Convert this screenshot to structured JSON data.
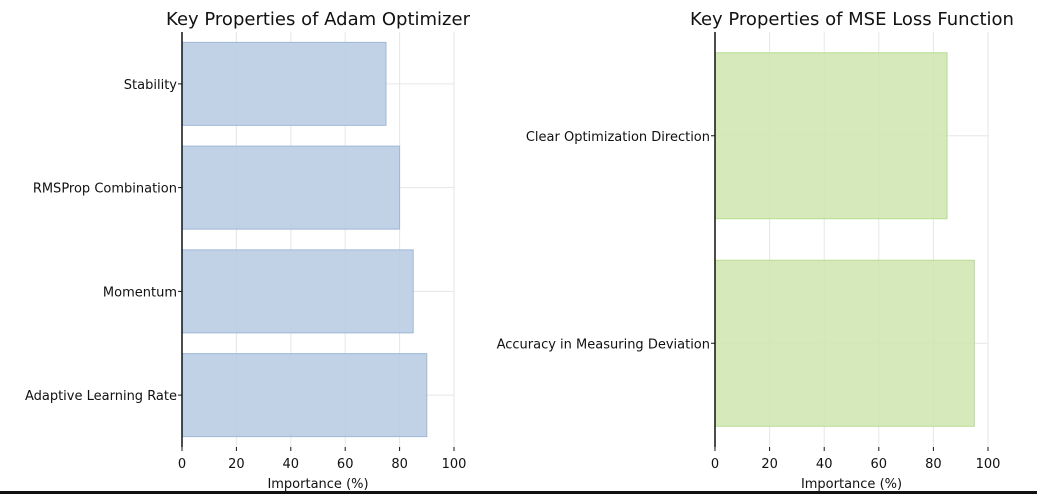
{
  "chart_data": [
    {
      "type": "bar",
      "orientation": "horizontal",
      "title": "Key Properties of Adam Optimizer",
      "xlabel": "Importance (%)",
      "ylabel": "",
      "categories": [
        "Adaptive Learning Rate",
        "Momentum",
        "RMSProp Combination",
        "Stability"
      ],
      "values": [
        90,
        85,
        80,
        75
      ],
      "xlim": [
        0,
        100
      ],
      "xticks": [
        "0",
        "20",
        "40",
        "60",
        "80",
        "100"
      ],
      "grid": true,
      "bar_color": "#b8cce4"
    },
    {
      "type": "bar",
      "orientation": "horizontal",
      "title": "Key Properties of MSE Loss Function",
      "xlabel": "Importance (%)",
      "ylabel": "",
      "categories": [
        "Accuracy in Measuring Deviation",
        "Clear Optimization Direction"
      ],
      "values": [
        95,
        85
      ],
      "xlim": [
        0,
        100
      ],
      "xticks": [
        "0",
        "20",
        "40",
        "60",
        "80",
        "100"
      ],
      "grid": true,
      "bar_color": "#cfe6b0"
    }
  ]
}
